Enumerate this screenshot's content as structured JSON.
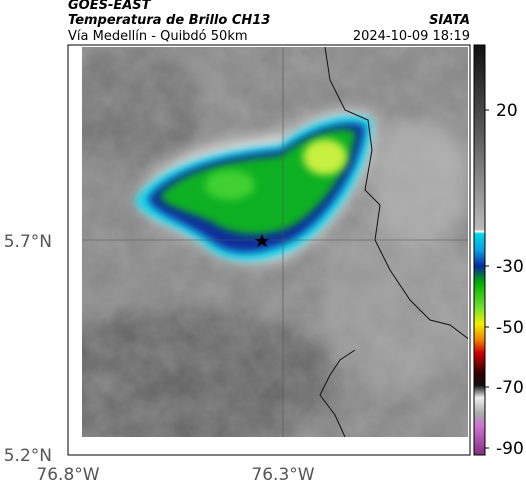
{
  "header": {
    "satellite": "GOES-EAST",
    "product": "Temperatura de Brillo CH13",
    "source": "SIATA",
    "route": "Vía Medellín - Quibdó 50km",
    "datetime": "2024-10-09 18:19"
  },
  "axes": {
    "lat_labels": [
      "5.7°N",
      "5.2°N"
    ],
    "lon_labels": [
      "76.8°W",
      "76.3°W"
    ]
  },
  "colorbar": {
    "labels": [
      "20",
      "-30",
      "-50",
      "-70",
      "-90"
    ]
  }
}
